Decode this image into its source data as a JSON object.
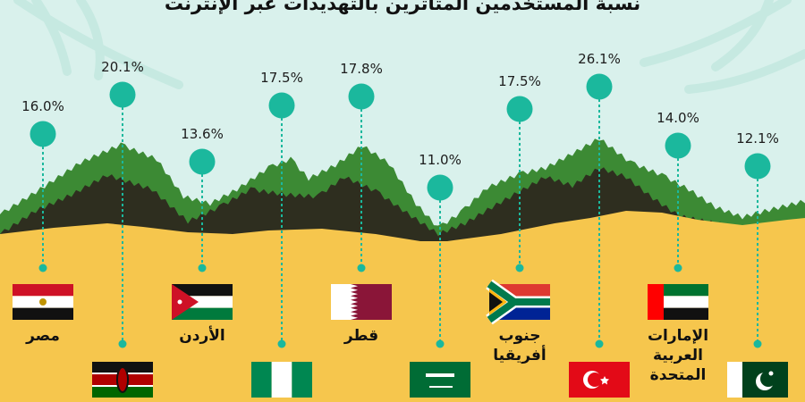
{
  "chart_data": {
    "type": "scatter",
    "title": "نسبة المستخدمين المتأثرين بالتهديدات عبر الإنترنت",
    "categories": [
      "مصر",
      "كينيا",
      "الأردن",
      "نيجيريا",
      "قطر",
      "السعودية",
      "جنوب أفريقيا",
      "تركيا",
      "الإمارات العربية المتحدة",
      "باكستان"
    ],
    "values": [
      16.0,
      20.1,
      13.6,
      17.5,
      17.8,
      11.0,
      17.5,
      26.1,
      14.0,
      12.1
    ],
    "value_labels": [
      "16.0%",
      "20.1%",
      "13.6%",
      "17.5%",
      "17.8%",
      "11.0%",
      "17.5%",
      "26.1%",
      "14.0%",
      "12.1%"
    ],
    "country_labels": [
      [
        "مصر"
      ],
      [],
      [
        "الأردن"
      ],
      [],
      [
        "قطر"
      ],
      [],
      [
        "جنوب",
        "أفريقيا"
      ],
      [],
      [
        "الإمارات",
        "العربية",
        "المتحدة"
      ],
      []
    ],
    "ylim": [
      10,
      27
    ],
    "grid": false,
    "legend": "none",
    "colors": {
      "background": "#d9f1ec",
      "marker": "#1bb89d",
      "stem": "#1bb89d",
      "sand": "#f6c64d",
      "hill_light": "#3c8a34",
      "hill_dark": "#2e2e1f"
    }
  }
}
